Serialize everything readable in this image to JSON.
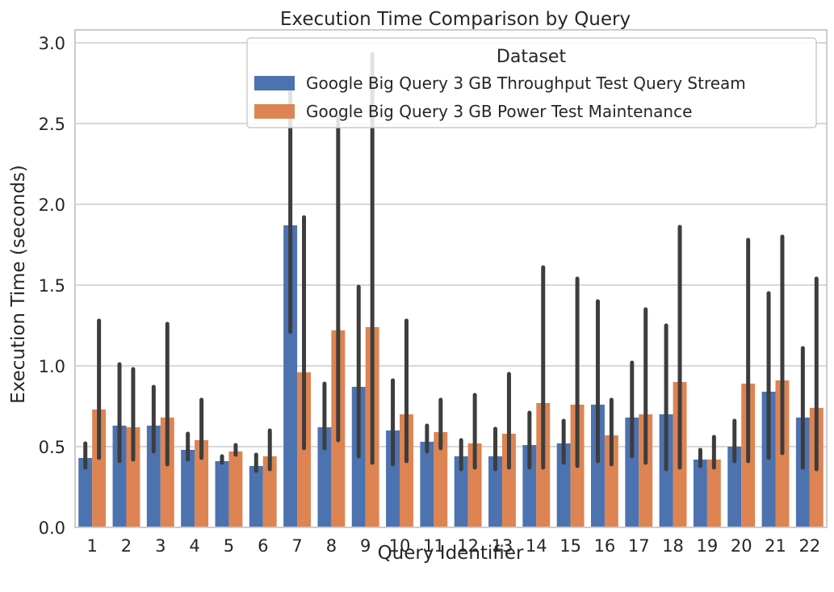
{
  "chart_data": {
    "type": "bar",
    "title": "Execution Time Comparison by Query",
    "xlabel": "Query Identifier",
    "ylabel": "Execution Time (seconds)",
    "ylim": [
      0,
      3.08
    ],
    "yticks": [
      "0.0",
      "0.5",
      "1.0",
      "1.5",
      "2.0",
      "2.5",
      "3.0"
    ],
    "grid": true,
    "legend": {
      "title": "Dataset",
      "placement": "top-right"
    },
    "categories": [
      "1",
      "2",
      "3",
      "4",
      "5",
      "6",
      "7",
      "8",
      "9",
      "10",
      "11",
      "12",
      "13",
      "14",
      "15",
      "16",
      "17",
      "18",
      "19",
      "20",
      "21",
      "22"
    ],
    "series": [
      {
        "name": "Google Big Query 3 GB Throughput Test Query Stream",
        "color": "#4c72b0",
        "values": [
          0.43,
          0.63,
          0.63,
          0.48,
          0.41,
          0.38,
          1.87,
          0.62,
          0.87,
          0.6,
          0.53,
          0.44,
          0.44,
          0.51,
          0.52,
          0.76,
          0.68,
          0.7,
          0.42,
          0.5,
          0.84,
          0.68
        ],
        "err_low": [
          0.37,
          0.41,
          0.47,
          0.42,
          0.4,
          0.35,
          1.21,
          0.49,
          0.44,
          0.39,
          0.47,
          0.36,
          0.36,
          0.37,
          0.4,
          0.41,
          0.44,
          0.36,
          0.38,
          0.41,
          0.43,
          0.37
        ],
        "err_high": [
          0.52,
          1.01,
          0.87,
          0.58,
          0.44,
          0.45,
          2.7,
          0.89,
          1.49,
          0.91,
          0.63,
          0.54,
          0.61,
          0.71,
          0.66,
          1.4,
          1.02,
          1.25,
          0.48,
          0.66,
          1.45,
          1.11
        ]
      },
      {
        "name": "Google Big Query 3 GB Power Test Maintenance",
        "color": "#dd8452",
        "values": [
          0.73,
          0.62,
          0.68,
          0.54,
          0.47,
          0.44,
          0.96,
          1.22,
          1.24,
          0.7,
          0.59,
          0.52,
          0.58,
          0.77,
          0.76,
          0.57,
          0.7,
          0.9,
          0.42,
          0.89,
          0.91,
          0.74
        ],
        "err_low": [
          0.43,
          0.42,
          0.39,
          0.43,
          0.45,
          0.36,
          0.49,
          0.54,
          0.4,
          0.41,
          0.49,
          0.37,
          0.37,
          0.37,
          0.38,
          0.39,
          0.4,
          0.37,
          0.37,
          0.41,
          0.46,
          0.36
        ],
        "err_high": [
          1.28,
          0.98,
          1.26,
          0.79,
          0.51,
          0.6,
          1.92,
          2.54,
          2.93,
          1.28,
          0.79,
          0.82,
          0.95,
          1.61,
          1.54,
          0.79,
          1.35,
          1.86,
          0.56,
          1.78,
          1.8,
          1.54
        ]
      }
    ]
  }
}
